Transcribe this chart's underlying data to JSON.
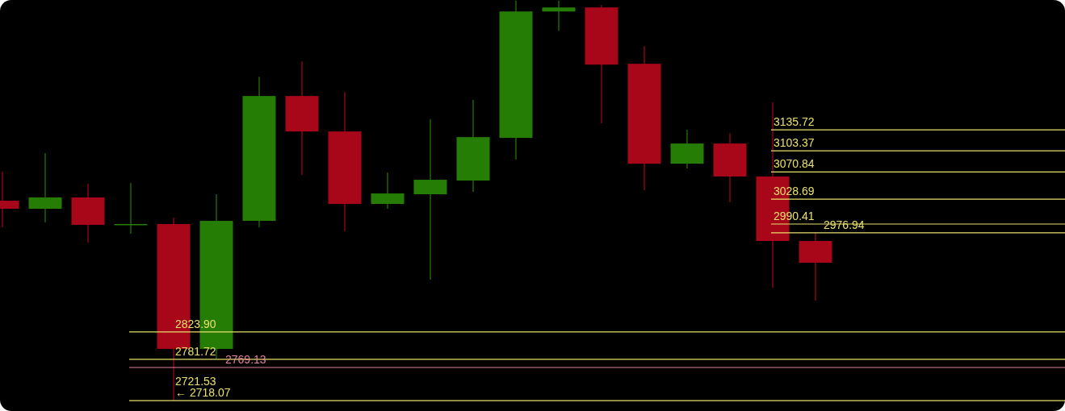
{
  "chart_data": {
    "type": "candlestick",
    "categories": [
      null,
      null,
      null,
      null,
      null,
      null,
      null,
      null,
      null,
      null,
      null,
      null,
      null,
      null,
      null,
      null,
      null,
      null,
      null,
      null
    ],
    "ohlc": [
      [
        3026.4,
        3071.1,
        2985.4,
        3014.0
      ],
      [
        3014.0,
        3099.7,
        2992.8,
        3031.4
      ],
      [
        3031.4,
        3052.5,
        2961.8,
        2989.1
      ],
      [
        2989.7,
        3053.7,
        2975.5,
        2990.4
      ],
      [
        2990.4,
        3000.3,
        2718.07,
        2797.8
      ],
      [
        2797.8,
        3036.3,
        2782.9,
        2995.3
      ],
      [
        2995.3,
        3217.7,
        2985.4,
        3187.9
      ],
      [
        3187.9,
        3241.3,
        3066.1,
        3133.2
      ],
      [
        3133.2,
        3194.1,
        2979.2,
        3021.4
      ],
      [
        3021.4,
        3069.9,
        3014.0,
        3037.6
      ],
      [
        3036.3,
        3151.9,
        2904.6,
        3058.7
      ],
      [
        3057.5,
        3181.7,
        3040.1,
        3124.5
      ],
      [
        3123.3,
        3335,
        3089.8,
        3318.3
      ],
      [
        3318.3,
        3335,
        3288.5,
        3324.5
      ],
      [
        3324.5,
        3328.3,
        3145.7,
        3236.3
      ],
      [
        3237.6,
        3264.9,
        3042.6,
        3083.5
      ],
      [
        3083.5,
        3135.7,
        3076.1,
        3114.6
      ],
      [
        3114.6,
        3130.7,
        3023.9,
        3063.7
      ],
      [
        3063.7,
        3178.0,
        2892.2,
        2964.3
      ],
      [
        2964.3,
        2976.7,
        2872.3,
        2930.7
      ]
    ],
    "colors": [
      "#a8071a",
      "#267d06",
      "#a8071a",
      "#267d06",
      "#a8071a",
      "#267d06",
      "#267d06",
      "#a8071a",
      "#a8071a",
      "#267d06",
      "#267d06",
      "#267d06",
      "#267d06",
      "#267d06",
      "#a8071a",
      "#a8071a",
      "#267d06",
      "#a8071a",
      "#a8071a",
      "#a8071a"
    ],
    "ylim": [
      2702,
      3336
    ],
    "tick_labels": false,
    "ref_lines": [
      {
        "axis": "y",
        "value": 3135.72,
        "label": "3135.72",
        "color": "#e8e06a"
      },
      {
        "axis": "y",
        "value": 3103.37,
        "label": "3103.37",
        "color": "#e8e06a"
      },
      {
        "axis": "y",
        "value": 3070.84,
        "label": "3070.84",
        "color": "#e8e06a"
      },
      {
        "axis": "y",
        "value": 3028.69,
        "label": "3028.69",
        "color": "#e8e06a"
      },
      {
        "axis": "y",
        "value": 2990.41,
        "label": "2990.41",
        "color": "#e8e06a"
      },
      {
        "axis": "y",
        "value": 2976.94,
        "label": "2976.94",
        "color": "#e8e06a"
      },
      {
        "axis": "y",
        "value": 2823.9,
        "label": "2823.90",
        "color": "#e8e06a"
      },
      {
        "axis": "y",
        "value": 2781.72,
        "label": "2781.72",
        "color": "#e8e06a"
      },
      {
        "axis": "y",
        "value": 2769.13,
        "label": "2769.13",
        "color": "#e87fa0"
      },
      {
        "axis": "y",
        "value": 2718.07,
        "label": "← 2718.07",
        "color": "#e8e06a"
      }
    ],
    "annotations": [
      "2721.53"
    ]
  }
}
